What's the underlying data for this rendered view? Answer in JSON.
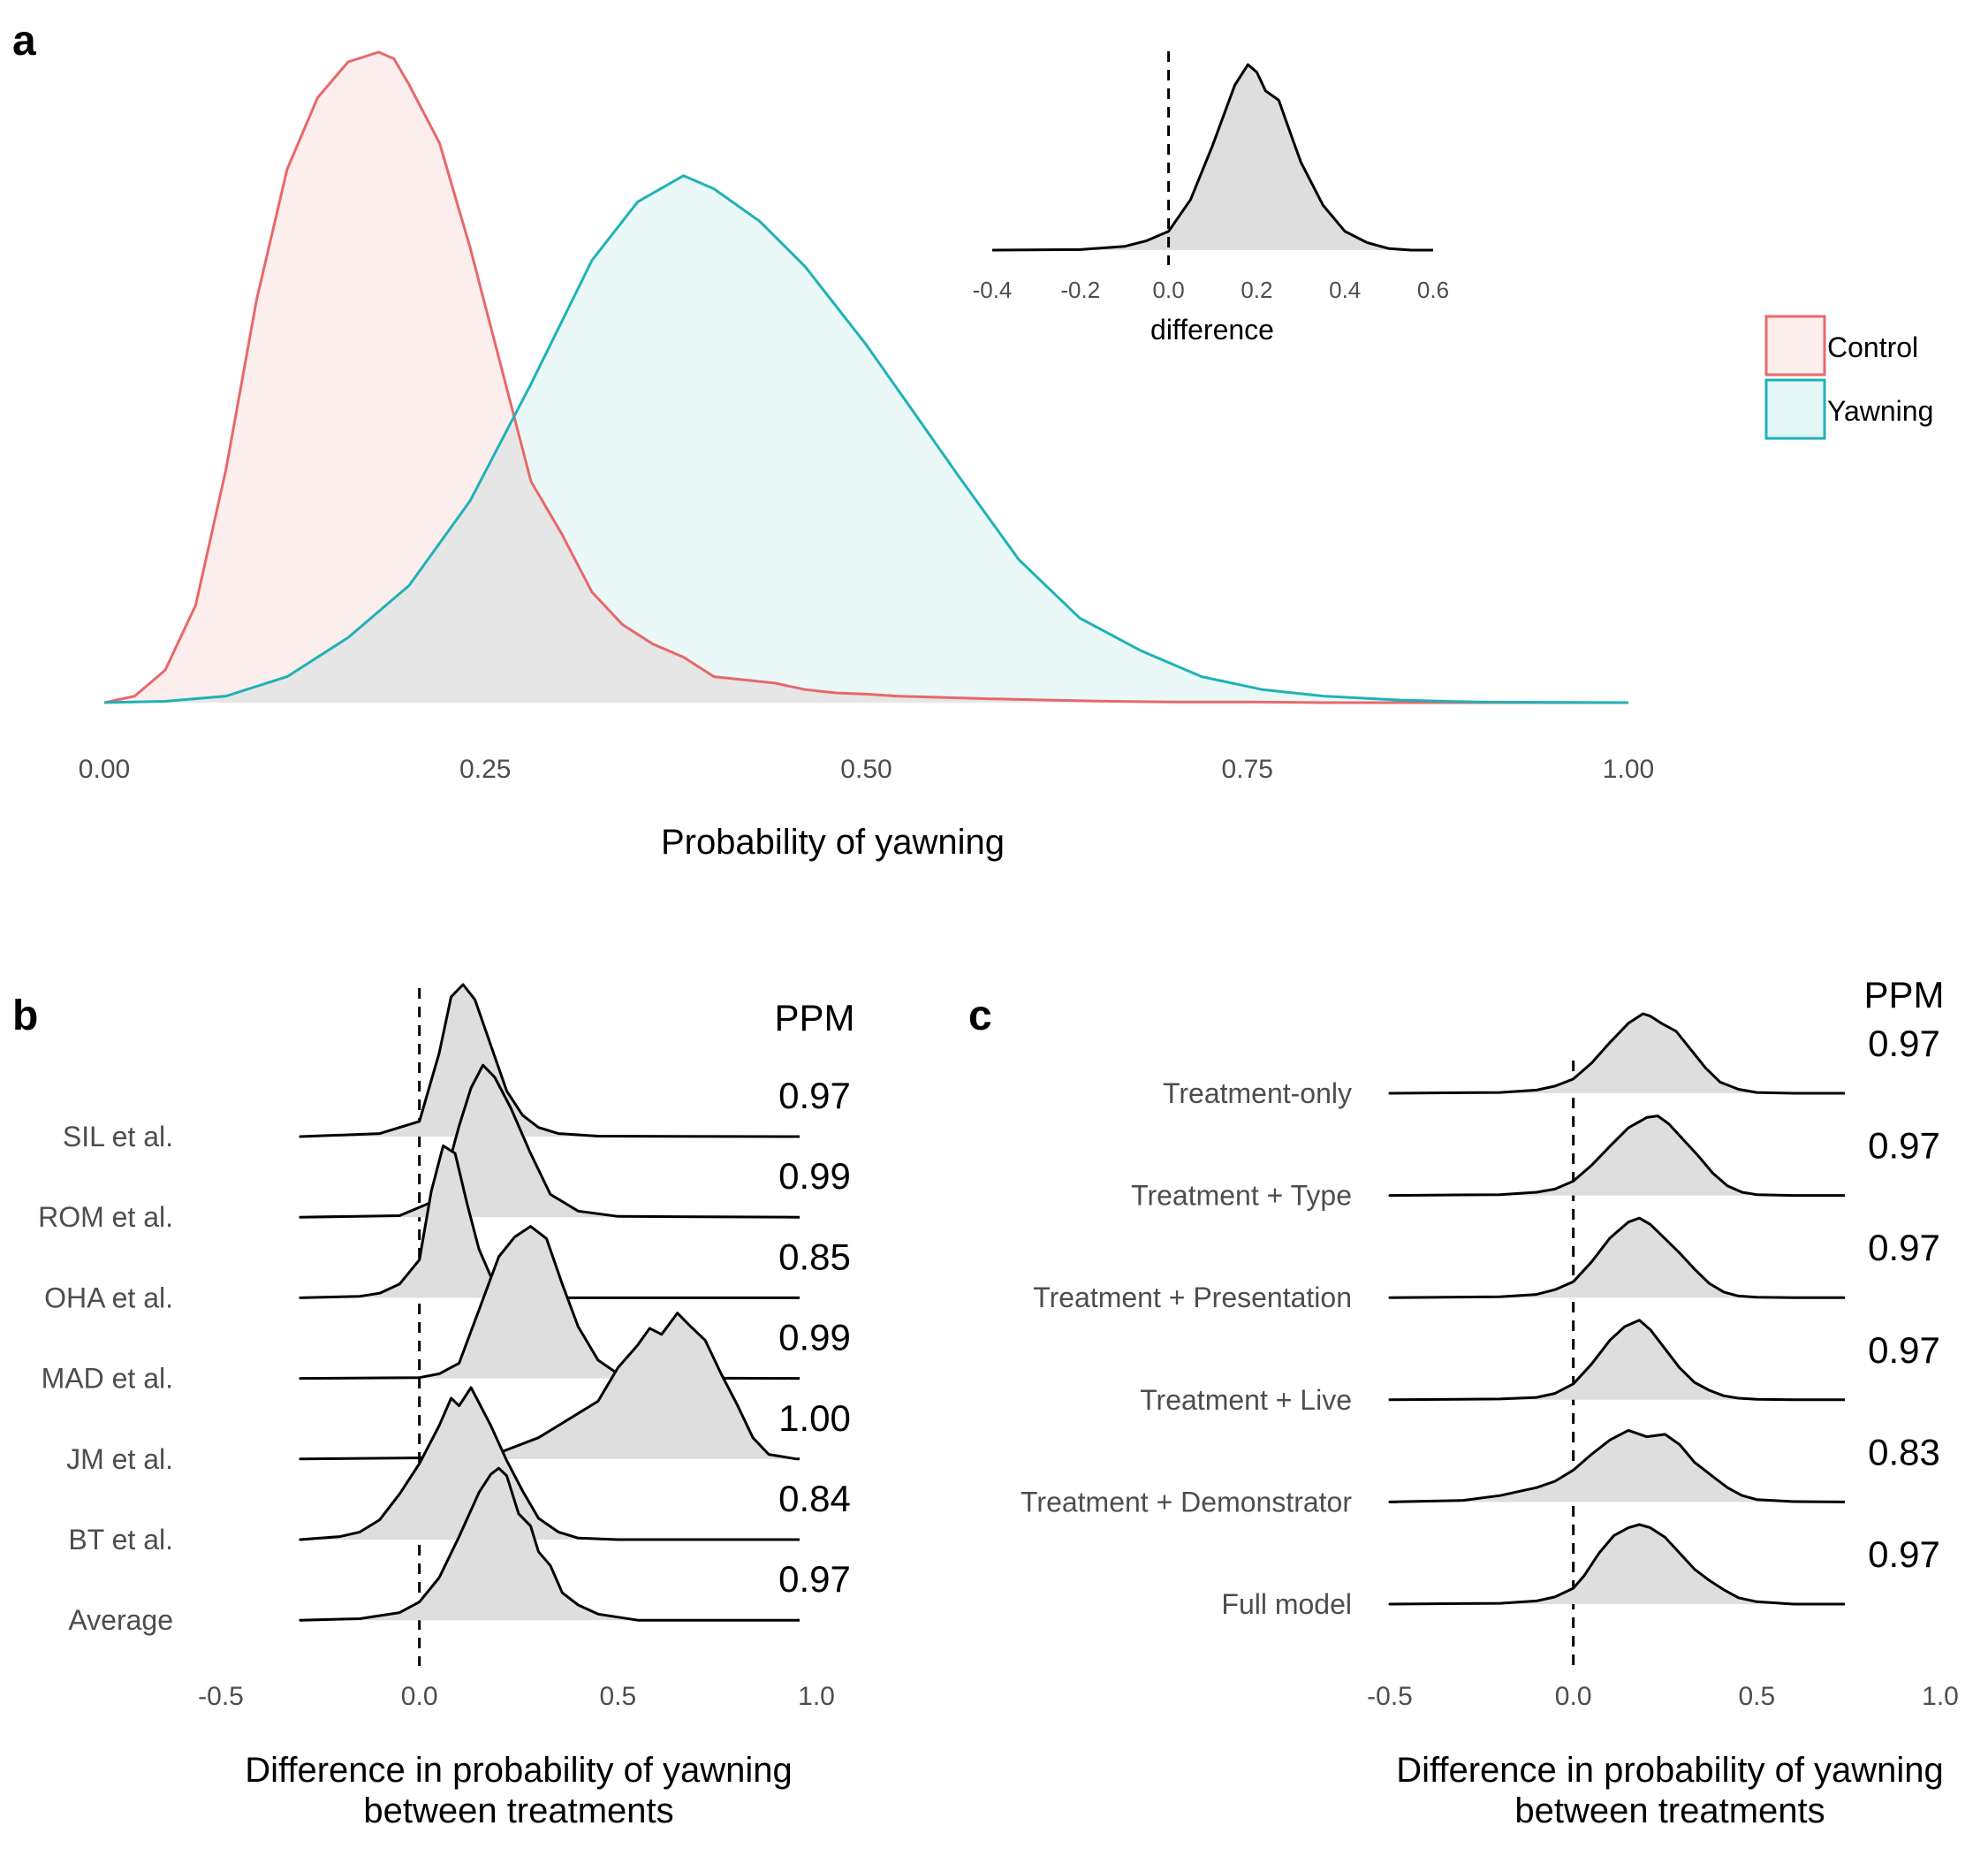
{
  "panels": {
    "a": {
      "letter": "a"
    },
    "b": {
      "letter": "b"
    },
    "c": {
      "letter": "c"
    }
  },
  "chart_data": [
    {
      "id": "a-main",
      "type": "area",
      "title": "",
      "xlabel": "Probability of yawning",
      "ylabel": "",
      "xlim": [
        0,
        1
      ],
      "xticks": [
        "0.00",
        "0.25",
        "0.50",
        "0.75",
        "1.00"
      ],
      "grid": false,
      "legend": {
        "placement": "right",
        "entries": [
          "Control",
          "Yawning"
        ]
      },
      "series": [
        {
          "name": "Control",
          "color": "#E8686A",
          "fill": "#FDEEEE",
          "x": [
            0.0,
            0.02,
            0.04,
            0.06,
            0.08,
            0.1,
            0.12,
            0.14,
            0.16,
            0.18,
            0.19,
            0.2,
            0.22,
            0.24,
            0.26,
            0.28,
            0.3,
            0.32,
            0.34,
            0.36,
            0.38,
            0.4,
            0.42,
            0.44,
            0.46,
            0.48,
            0.5,
            0.52,
            0.55,
            0.58,
            0.62,
            0.66,
            0.7,
            0.75,
            0.8,
            1.0
          ],
          "y": [
            0.0,
            0.01,
            0.05,
            0.15,
            0.36,
            0.62,
            0.82,
            0.93,
            0.985,
            1.0,
            0.99,
            0.95,
            0.86,
            0.7,
            0.52,
            0.34,
            0.26,
            0.17,
            0.12,
            0.09,
            0.07,
            0.04,
            0.035,
            0.03,
            0.02,
            0.015,
            0.013,
            0.01,
            0.008,
            0.006,
            0.004,
            0.002,
            0.001,
            0.001,
            0.0,
            0.0
          ]
        },
        {
          "name": "Yawning",
          "color": "#1FB2B7",
          "fill": "#E3F5F5",
          "x": [
            0.0,
            0.04,
            0.08,
            0.12,
            0.16,
            0.2,
            0.24,
            0.28,
            0.32,
            0.35,
            0.38,
            0.4,
            0.43,
            0.46,
            0.5,
            0.53,
            0.56,
            0.6,
            0.64,
            0.68,
            0.72,
            0.76,
            0.8,
            0.85,
            0.9,
            1.0
          ],
          "y": [
            0.0,
            0.002,
            0.01,
            0.04,
            0.1,
            0.18,
            0.31,
            0.49,
            0.68,
            0.77,
            0.81,
            0.79,
            0.74,
            0.67,
            0.55,
            0.45,
            0.35,
            0.22,
            0.13,
            0.08,
            0.04,
            0.02,
            0.01,
            0.004,
            0.001,
            0.0
          ]
        }
      ]
    },
    {
      "id": "a-inset",
      "type": "area",
      "title": "",
      "xlabel": "difference",
      "ylabel": "",
      "xlim": [
        -0.4,
        0.6
      ],
      "xticks": [
        "-0.4",
        "-0.2",
        "0.0",
        "0.2",
        "0.4",
        "0.6"
      ],
      "vline": 0,
      "series": [
        {
          "name": "",
          "color": "#000000",
          "fill": "#DEDEDE",
          "x": [
            -0.4,
            -0.2,
            -0.1,
            -0.05,
            0.0,
            0.05,
            0.1,
            0.15,
            0.18,
            0.2,
            0.22,
            0.25,
            0.28,
            0.3,
            0.35,
            0.4,
            0.45,
            0.5,
            0.55,
            0.6
          ],
          "y": [
            0.0,
            0.003,
            0.02,
            0.05,
            0.1,
            0.27,
            0.56,
            0.88,
            0.99,
            0.95,
            0.85,
            0.8,
            0.6,
            0.47,
            0.24,
            0.1,
            0.04,
            0.008,
            0.0,
            0.0
          ]
        }
      ]
    },
    {
      "id": "b",
      "type": "area",
      "title": "",
      "xlabel_lines": [
        "Difference in probability of yawning",
        "between treatments"
      ],
      "ylabel": "",
      "xlim": [
        -0.5,
        1.0
      ],
      "xticks": [
        "-0.5",
        "0.0",
        "0.5",
        "1.0"
      ],
      "vline": 0,
      "ppm_header": "PPM",
      "rows": [
        {
          "label": "SIL et al.",
          "ppm": "0.97",
          "x": [
            -0.3,
            -0.1,
            0.0,
            0.05,
            0.08,
            0.11,
            0.14,
            0.18,
            0.22,
            0.26,
            0.3,
            0.35,
            0.45,
            0.95
          ],
          "y": [
            0.0,
            0.02,
            0.1,
            0.55,
            0.92,
            1.0,
            0.9,
            0.6,
            0.3,
            0.14,
            0.06,
            0.02,
            0.003,
            0.0
          ]
        },
        {
          "label": "ROM et al.",
          "ppm": "0.99",
          "x": [
            -0.3,
            -0.05,
            0.05,
            0.1,
            0.13,
            0.16,
            0.19,
            0.23,
            0.28,
            0.33,
            0.4,
            0.5,
            0.95
          ],
          "y": [
            0.0,
            0.01,
            0.12,
            0.6,
            0.85,
            1.0,
            0.92,
            0.72,
            0.42,
            0.15,
            0.04,
            0.005,
            0.0
          ]
        },
        {
          "label": "OHA et al.",
          "ppm": "0.85",
          "x": [
            -0.3,
            -0.15,
            -0.1,
            -0.05,
            0.0,
            0.03,
            0.06,
            0.09,
            0.12,
            0.15,
            0.18,
            0.22,
            0.28,
            0.35,
            0.95
          ],
          "y": [
            0.0,
            0.01,
            0.03,
            0.09,
            0.25,
            0.7,
            1.0,
            0.95,
            0.62,
            0.32,
            0.14,
            0.05,
            0.01,
            0.0,
            0.0
          ]
        },
        {
          "label": "MAD et al.",
          "ppm": "0.99",
          "x": [
            -0.3,
            0.0,
            0.05,
            0.1,
            0.15,
            0.2,
            0.24,
            0.28,
            0.32,
            0.36,
            0.4,
            0.45,
            0.5,
            0.6,
            0.95
          ],
          "y": [
            0.0,
            0.005,
            0.03,
            0.1,
            0.45,
            0.8,
            0.93,
            1.0,
            0.92,
            0.62,
            0.34,
            0.12,
            0.03,
            0.003,
            0.0
          ]
        },
        {
          "label": "JM et al.",
          "ppm": "1.00",
          "x": [
            -0.3,
            0.1,
            0.2,
            0.3,
            0.4,
            0.45,
            0.5,
            0.55,
            0.58,
            0.61,
            0.65,
            0.68,
            0.72,
            0.76,
            0.8,
            0.84,
            0.88,
            0.95
          ],
          "y": [
            0.0,
            0.01,
            0.04,
            0.14,
            0.3,
            0.38,
            0.6,
            0.75,
            0.86,
            0.82,
            0.96,
            0.88,
            0.78,
            0.56,
            0.36,
            0.14,
            0.03,
            0.0
          ]
        },
        {
          "label": "BT et al.",
          "ppm": "0.84",
          "x": [
            -0.3,
            -0.2,
            -0.15,
            -0.1,
            -0.05,
            0.0,
            0.05,
            0.08,
            0.1,
            0.13,
            0.15,
            0.18,
            0.22,
            0.26,
            0.3,
            0.35,
            0.4,
            0.5,
            0.95
          ],
          "y": [
            0.0,
            0.02,
            0.05,
            0.13,
            0.3,
            0.5,
            0.75,
            0.93,
            0.88,
            1.0,
            0.9,
            0.75,
            0.52,
            0.32,
            0.14,
            0.05,
            0.01,
            0.0,
            0.0
          ]
        },
        {
          "label": "Average",
          "ppm": "0.97",
          "x": [
            -0.3,
            -0.15,
            -0.05,
            0.0,
            0.05,
            0.1,
            0.15,
            0.18,
            0.2,
            0.22,
            0.25,
            0.28,
            0.3,
            0.33,
            0.36,
            0.4,
            0.45,
            0.55,
            0.95
          ],
          "y": [
            0.0,
            0.01,
            0.05,
            0.12,
            0.28,
            0.55,
            0.84,
            0.96,
            1.0,
            0.95,
            0.7,
            0.62,
            0.45,
            0.36,
            0.18,
            0.1,
            0.04,
            0.0,
            0.0
          ]
        }
      ]
    },
    {
      "id": "c",
      "type": "area",
      "title": "",
      "xlabel_lines": [
        "Difference in probability of yawning",
        "between treatments"
      ],
      "ylabel": "",
      "xlim": [
        -0.5,
        1.0
      ],
      "xticks": [
        "-0.5",
        "0.0",
        "0.5",
        "1.0"
      ],
      "vline": 0,
      "ppm_header": "PPM",
      "rows": [
        {
          "label": "Treatment-only",
          "ppm": "0.97",
          "x": [
            -0.5,
            -0.2,
            -0.1,
            -0.05,
            0.0,
            0.05,
            0.1,
            0.15,
            0.19,
            0.21,
            0.24,
            0.28,
            0.32,
            0.36,
            0.4,
            0.45,
            0.5,
            0.6,
            0.73
          ],
          "y": [
            0.0,
            0.01,
            0.04,
            0.09,
            0.18,
            0.38,
            0.64,
            0.88,
            1.0,
            0.97,
            0.88,
            0.78,
            0.55,
            0.32,
            0.14,
            0.05,
            0.01,
            0.0,
            0.0
          ]
        },
        {
          "label": "Treatment + Type",
          "ppm": "0.97",
          "x": [
            -0.5,
            -0.2,
            -0.1,
            -0.05,
            0.0,
            0.05,
            0.1,
            0.15,
            0.2,
            0.23,
            0.26,
            0.3,
            0.34,
            0.38,
            0.42,
            0.46,
            0.5,
            0.6,
            0.73
          ],
          "y": [
            0.0,
            0.01,
            0.04,
            0.08,
            0.18,
            0.38,
            0.62,
            0.85,
            0.98,
            1.0,
            0.9,
            0.7,
            0.5,
            0.28,
            0.12,
            0.04,
            0.01,
            0.0,
            0.0
          ]
        },
        {
          "label": "Treatment + Presentation",
          "ppm": "0.97",
          "x": [
            -0.5,
            -0.2,
            -0.1,
            -0.05,
            0.0,
            0.05,
            0.1,
            0.15,
            0.18,
            0.21,
            0.25,
            0.29,
            0.33,
            0.37,
            0.41,
            0.45,
            0.5,
            0.6,
            0.73
          ],
          "y": [
            0.0,
            0.01,
            0.04,
            0.1,
            0.2,
            0.45,
            0.75,
            0.95,
            1.0,
            0.92,
            0.74,
            0.56,
            0.36,
            0.18,
            0.07,
            0.02,
            0.005,
            0.0,
            0.0
          ]
        },
        {
          "label": "Treatment + Live",
          "ppm": "0.97",
          "x": [
            -0.5,
            -0.2,
            -0.1,
            -0.05,
            0.0,
            0.05,
            0.1,
            0.14,
            0.18,
            0.21,
            0.25,
            0.29,
            0.33,
            0.37,
            0.41,
            0.45,
            0.5,
            0.6,
            0.73
          ],
          "y": [
            0.0,
            0.01,
            0.03,
            0.08,
            0.2,
            0.45,
            0.75,
            0.92,
            1.0,
            0.88,
            0.64,
            0.4,
            0.22,
            0.12,
            0.05,
            0.02,
            0.005,
            0.0,
            0.0
          ]
        },
        {
          "label": "Treatment + Demonstrator",
          "ppm": "0.83",
          "x": [
            -0.5,
            -0.3,
            -0.2,
            -0.1,
            -0.05,
            0.0,
            0.05,
            0.1,
            0.15,
            0.2,
            0.25,
            0.29,
            0.33,
            0.38,
            0.42,
            0.46,
            0.5,
            0.6,
            0.73
          ],
          "y": [
            0.0,
            0.02,
            0.08,
            0.18,
            0.26,
            0.4,
            0.6,
            0.78,
            0.9,
            0.82,
            0.85,
            0.72,
            0.5,
            0.32,
            0.18,
            0.08,
            0.03,
            0.005,
            0.0
          ]
        },
        {
          "label": "Full model",
          "ppm": "0.97",
          "x": [
            -0.5,
            -0.2,
            -0.1,
            -0.05,
            0.0,
            0.03,
            0.07,
            0.11,
            0.15,
            0.18,
            0.21,
            0.25,
            0.29,
            0.33,
            0.37,
            0.41,
            0.45,
            0.5,
            0.6,
            0.73
          ],
          "y": [
            0.0,
            0.01,
            0.04,
            0.09,
            0.2,
            0.36,
            0.64,
            0.86,
            0.96,
            1.0,
            0.96,
            0.84,
            0.64,
            0.44,
            0.3,
            0.18,
            0.08,
            0.03,
            0.0,
            0.0
          ]
        }
      ]
    }
  ]
}
